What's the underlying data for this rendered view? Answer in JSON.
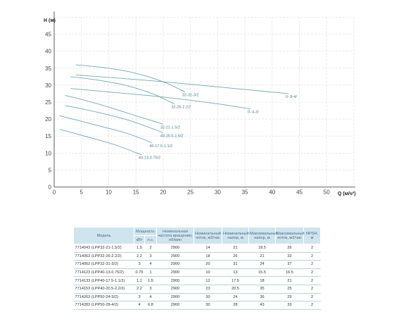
{
  "chart_data": {
    "type": "line",
    "xlabel": "Q (м/ч³)",
    "ylabel": "H (м)",
    "xlim": [
      0,
      55
    ],
    "ylim": [
      0,
      50
    ],
    "xticks": [
      0,
      5,
      10,
      15,
      20,
      25,
      30,
      35,
      40,
      45,
      50
    ],
    "yticks": [
      0,
      5,
      10,
      15,
      20,
      25,
      30,
      35,
      40,
      45
    ],
    "grid": true,
    "series": [
      {
        "name": "0- 8-4/",
        "x": [
          4,
          10,
          20,
          30,
          43
        ],
        "y": [
          33,
          32.3,
          31,
          29.5,
          27.5
        ]
      },
      {
        "name": "32-31-3/2",
        "x": [
          4,
          10,
          15,
          20,
          24
        ],
        "y": [
          36,
          35,
          33.5,
          31,
          28
        ]
      },
      {
        "name": "32-26-2.2/2",
        "x": [
          3,
          8,
          13,
          18,
          22
        ],
        "y": [
          32.5,
          31.5,
          30,
          27.5,
          24.5
        ]
      },
      {
        "name": "0- 4-3/",
        "x": [
          3,
          10,
          20,
          30,
          36
        ],
        "y": [
          29,
          28,
          26.5,
          24.5,
          23
        ]
      },
      {
        "name": "32-21-1.5/2",
        "x": [
          2,
          8,
          14,
          20
        ],
        "y": [
          27,
          24.5,
          21.5,
          18.5
        ]
      },
      {
        "name": "40-20.5-1.5/2",
        "x": [
          2,
          8,
          14,
          20
        ],
        "y": [
          24,
          22,
          19.5,
          16
        ]
      },
      {
        "name": "40-17.5-1.1/2",
        "x": [
          1,
          7,
          13,
          18
        ],
        "y": [
          21,
          18.5,
          16,
          13
        ]
      },
      {
        "name": "40-13-0.75/2",
        "x": [
          1,
          6,
          11,
          16
        ],
        "y": [
          17,
          14.8,
          12.5,
          9.5
        ]
      }
    ]
  },
  "table": {
    "headers": {
      "model": "Модель",
      "power": "Мощность",
      "kw": "кВт",
      "hp": "л.с.",
      "rpm": "Номинальная частота вращения, об/мин",
      "qnom": "Номинальный поток, м3/час",
      "hnom": "Номинальный напор, м",
      "hmax": "Максимальный напор, м",
      "qmax": "Максимальный поток, м3/час",
      "qmax2": "Максимальный поток, м3/час",
      "npsh": "NPSH, м"
    },
    "rows": [
      {
        "model": "7714043 (LPP32-21-1.5/2)",
        "kw": "1.5",
        "hp": "2",
        "rpm": "2900",
        "qnom": "14",
        "hnom": "21",
        "hmax": "18.5",
        "qmax": "26",
        "npsh": "2"
      },
      {
        "model": "7714053 (LPP32-26-2.2/2)",
        "kw": "2.2",
        "hp": "3",
        "rpm": "2900",
        "qnom": "18",
        "hnom": "26",
        "hmax": "21",
        "qmax": "32",
        "npsh": "2"
      },
      {
        "model": "7714063 (LPP32-31-3/2)",
        "kw": "3",
        "hp": "4",
        "rpm": "2900",
        "qnom": "20",
        "hnom": "31",
        "hmax": "24",
        "qmax": "37",
        "npsh": "2"
      },
      {
        "model": "7714123 (LPP40-13-0.75/2)",
        "kw": "0.75",
        "hp": "1",
        "rpm": "2900",
        "qnom": "10",
        "hnom": "13",
        "hmax": "15.5",
        "qmax": "16.5",
        "npsh": "2"
      },
      {
        "model": "7714133 (LPP40-17.5-1.1/2)",
        "kw": "1.1",
        "hp": "1.5",
        "rpm": "2900",
        "qnom": "12",
        "hnom": "17.5",
        "hmax": "18",
        "qmax": "21",
        "npsh": "2"
      },
      {
        "model": "7714153 (LPP40-20.5-2.2/2)",
        "kw": "2.2",
        "hp": "3",
        "rpm": "2900",
        "qnom": "23",
        "hnom": "20.5",
        "hmax": "35",
        "qmax": "25",
        "npsh": "2"
      },
      {
        "model": "7714263 (LPP50-24-3/2)",
        "kw": "3",
        "hp": "4",
        "rpm": "2900",
        "qnom": "30",
        "hnom": "24",
        "hmax": "36",
        "qmax": "29",
        "npsh": "2"
      },
      {
        "model": "7714283 (LPP50-28-4/2)",
        "kw": "4",
        "hp": "6.8",
        "rpm": "2900",
        "qnom": "30",
        "hnom": "28",
        "hmax": "43",
        "qmax": "33",
        "npsh": "2"
      }
    ]
  },
  "colors": {
    "curve": "#6fa8b8",
    "grid": "#d9d9d9",
    "axis": "#333333",
    "header_bg": "#cfe4ef",
    "label": "#4a7f8f"
  }
}
